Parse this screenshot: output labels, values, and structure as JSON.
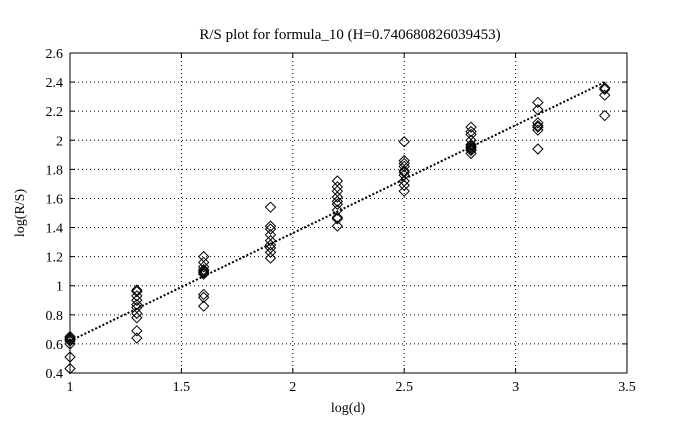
{
  "chart_data": {
    "type": "scatter",
    "title": "R/S plot for formula_10 (H=0.740680826039453)",
    "xlabel": "log(d)",
    "ylabel": "log(R/S)",
    "xlim": [
      1,
      3.5
    ],
    "ylim": [
      0.4,
      2.6
    ],
    "xticks": [
      1,
      1.5,
      2,
      2.5,
      3,
      3.5
    ],
    "yticks": [
      0.4,
      0.6,
      0.8,
      1,
      1.2,
      1.4,
      1.6,
      1.8,
      2,
      2.2,
      2.4,
      2.6
    ],
    "xtick_labels": [
      "1",
      "1.5",
      "2",
      "2.5",
      "3",
      "3.5"
    ],
    "ytick_labels": [
      "0.4",
      "0.6",
      "0.8",
      "1",
      "1.2",
      "1.4",
      "1.6",
      "1.8",
      "2",
      "2.2",
      "2.4",
      "2.6"
    ],
    "grid": true,
    "marker": "diamond",
    "points": [
      [
        1.0,
        0.43
      ],
      [
        1.0,
        0.51
      ],
      [
        1.0,
        0.6
      ],
      [
        1.0,
        0.62
      ],
      [
        1.0,
        0.63
      ],
      [
        1.0,
        0.64
      ],
      [
        1.0,
        0.65
      ],
      [
        1.3,
        0.64
      ],
      [
        1.3,
        0.69
      ],
      [
        1.3,
        0.78
      ],
      [
        1.3,
        0.81
      ],
      [
        1.3,
        0.85
      ],
      [
        1.3,
        0.87
      ],
      [
        1.3,
        0.9
      ],
      [
        1.3,
        0.93
      ],
      [
        1.3,
        0.96
      ],
      [
        1.3,
        0.97
      ],
      [
        1.6,
        0.86
      ],
      [
        1.6,
        0.92
      ],
      [
        1.6,
        0.94
      ],
      [
        1.6,
        1.08
      ],
      [
        1.6,
        1.09
      ],
      [
        1.6,
        1.1
      ],
      [
        1.6,
        1.11
      ],
      [
        1.6,
        1.13
      ],
      [
        1.6,
        1.16
      ],
      [
        1.6,
        1.2
      ],
      [
        1.9,
        1.19
      ],
      [
        1.9,
        1.23
      ],
      [
        1.9,
        1.26
      ],
      [
        1.9,
        1.28
      ],
      [
        1.9,
        1.31
      ],
      [
        1.9,
        1.35
      ],
      [
        1.9,
        1.39
      ],
      [
        1.9,
        1.41
      ],
      [
        1.9,
        1.54
      ],
      [
        2.2,
        1.41
      ],
      [
        2.2,
        1.46
      ],
      [
        2.2,
        1.47
      ],
      [
        2.2,
        1.52
      ],
      [
        2.2,
        1.56
      ],
      [
        2.2,
        1.58
      ],
      [
        2.2,
        1.61
      ],
      [
        2.2,
        1.65
      ],
      [
        2.2,
        1.68
      ],
      [
        2.2,
        1.72
      ],
      [
        2.5,
        1.65
      ],
      [
        2.5,
        1.69
      ],
      [
        2.5,
        1.72
      ],
      [
        2.5,
        1.76
      ],
      [
        2.5,
        1.78
      ],
      [
        2.5,
        1.79
      ],
      [
        2.5,
        1.82
      ],
      [
        2.5,
        1.84
      ],
      [
        2.5,
        1.86
      ],
      [
        2.5,
        1.99
      ],
      [
        2.8,
        1.91
      ],
      [
        2.8,
        1.93
      ],
      [
        2.8,
        1.94
      ],
      [
        2.8,
        1.95
      ],
      [
        2.8,
        1.96
      ],
      [
        2.8,
        1.97
      ],
      [
        2.8,
        2.0
      ],
      [
        2.8,
        2.04
      ],
      [
        2.8,
        2.06
      ],
      [
        2.8,
        2.09
      ],
      [
        3.1,
        1.94
      ],
      [
        3.1,
        2.07
      ],
      [
        3.1,
        2.09
      ],
      [
        3.1,
        2.1
      ],
      [
        3.1,
        2.12
      ],
      [
        3.1,
        2.21
      ],
      [
        3.1,
        2.26
      ],
      [
        3.4,
        2.17
      ],
      [
        3.4,
        2.31
      ],
      [
        3.4,
        2.35
      ],
      [
        3.4,
        2.36
      ]
    ],
    "fit_line": {
      "x": [
        1.0,
        3.4
      ],
      "y": [
        0.62,
        2.4
      ]
    }
  }
}
